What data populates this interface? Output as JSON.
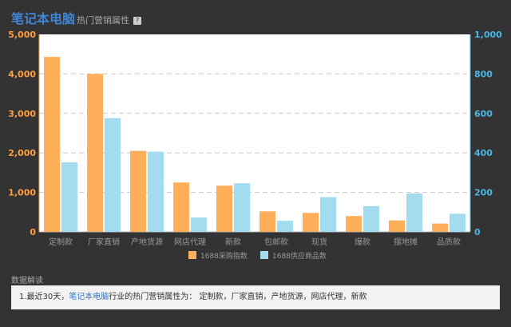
{
  "header": {
    "title_main": "笔记本电脑",
    "title_sub": "热门营销属性",
    "help_label": "?"
  },
  "chart_data": {
    "type": "bar",
    "categories": [
      "定制款",
      "厂家直销",
      "产地货源",
      "网店代理",
      "新款",
      "包邮款",
      "现货",
      "爆款",
      "摆地摊",
      "品质款"
    ],
    "series": [
      {
        "name": "1688采购指数",
        "axis": "left",
        "color": "#ffae5a",
        "values": [
          4430,
          4000,
          2050,
          1250,
          1170,
          520,
          480,
          400,
          290,
          210
        ]
      },
      {
        "name": "1688供应商品数",
        "axis": "right",
        "color": "#a3dcef",
        "values": [
          352,
          576,
          406,
          73,
          246,
          56,
          176,
          130,
          194,
          92
        ]
      }
    ],
    "ylim_left": [
      0,
      5000
    ],
    "ylim_right": [
      0,
      1000
    ],
    "yticks_left": [
      "0",
      "1,000",
      "2,000",
      "3,000",
      "4,000",
      "5,000"
    ],
    "yticks_right": [
      "0",
      "200",
      "400",
      "600",
      "800",
      "1,000"
    ],
    "left_axis_color": "#ff9e3d",
    "right_axis_color": "#49b7e7",
    "grid": true,
    "legend_position": "bottom-center"
  },
  "insight": {
    "section_title": "数据解读",
    "prefix": "1.最近30天，",
    "highlight": "笔记本电脑",
    "suffix": "行业的热门营销属性为： 定制款，厂家直销，产地货源，网店代理，新款"
  }
}
